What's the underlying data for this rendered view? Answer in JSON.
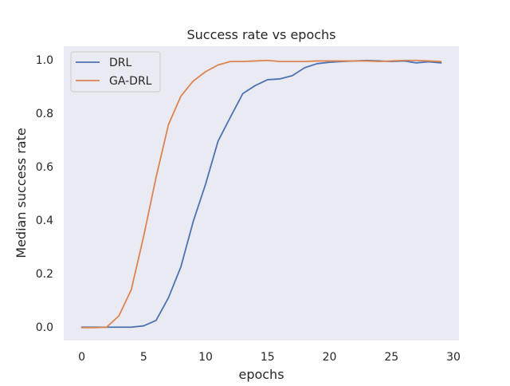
{
  "chart_data": {
    "type": "line",
    "title": "Success rate vs epochs",
    "xlabel": "epochs",
    "ylabel": "Median success rate",
    "xlim": [
      -1.45,
      30.45
    ],
    "ylim": [
      -0.05,
      1.05
    ],
    "xticks": [
      0,
      5,
      10,
      15,
      20,
      25,
      30
    ],
    "xtick_labels": [
      "0",
      "5",
      "10",
      "15",
      "20",
      "25",
      "30"
    ],
    "yticks": [
      0.0,
      0.2,
      0.4,
      0.6,
      0.8,
      1.0
    ],
    "ytick_labels": [
      "0.0",
      "0.2",
      "0.4",
      "0.6",
      "0.8",
      "1.0"
    ],
    "grid": false,
    "legend_position": "top-left",
    "background": "#eaeaf2",
    "x": [
      0,
      1,
      2,
      3,
      4,
      5,
      6,
      7,
      8,
      9,
      10,
      11,
      12,
      13,
      14,
      15,
      16,
      17,
      18,
      19,
      20,
      21,
      22,
      23,
      24,
      25,
      26,
      27,
      28,
      29
    ],
    "series": [
      {
        "name": "DRL",
        "color": "#4c72b0",
        "values": [
          0.0,
          0.0,
          0.0,
          0.0,
          0.0,
          0.005,
          0.025,
          0.11,
          0.225,
          0.395,
          0.535,
          0.695,
          0.785,
          0.873,
          0.903,
          0.925,
          0.928,
          0.94,
          0.97,
          0.985,
          0.99,
          0.993,
          0.995,
          0.997,
          0.995,
          0.993,
          0.995,
          0.988,
          0.992,
          0.988
        ]
      },
      {
        "name": "GA-DRL",
        "color": "#dd8452",
        "values": [
          -0.002,
          -0.002,
          0.0,
          0.042,
          0.14,
          0.34,
          0.56,
          0.757,
          0.863,
          0.92,
          0.955,
          0.98,
          0.993,
          0.993,
          0.995,
          0.997,
          0.993,
          0.993,
          0.993,
          0.995,
          0.995,
          0.995,
          0.995,
          0.995,
          0.993,
          0.995,
          0.997,
          0.997,
          0.995,
          0.993
        ]
      }
    ]
  }
}
